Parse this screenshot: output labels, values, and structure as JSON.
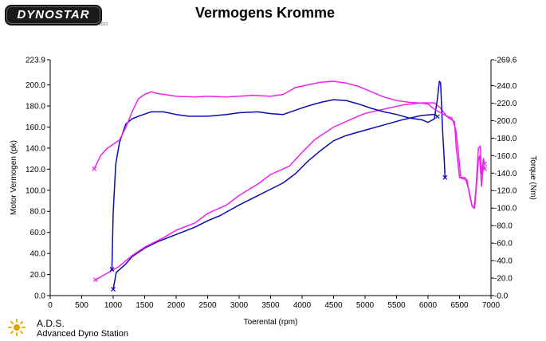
{
  "header": {
    "logo_text": "DYNOSTAR",
    "logo_sub": "2023",
    "title": "Vermogens Kromme"
  },
  "footer": {
    "brand": "A.D.S.",
    "brand_sub": "Advanced Dyno Station"
  },
  "colors": {
    "blue": "#0a0ab4",
    "magenta": "#ee22ee",
    "axis": "#000000"
  },
  "chart_data": {
    "type": "line",
    "title": "Vermogens Kromme",
    "xlabel": "Toerental (rpm)",
    "ylabel": "Motor Vermogen (pk)",
    "y2label": "Torque (Nm)",
    "xlim": [
      0,
      7000
    ],
    "ylim": [
      0,
      223.9
    ],
    "y2lim": [
      0,
      269.6
    ],
    "x_ticks": [
      0,
      500,
      1000,
      1500,
      2000,
      2500,
      3000,
      3500,
      4000,
      4500,
      5000,
      5500,
      6000,
      6500,
      7000
    ],
    "y_ticks": [
      "0.0",
      "20.0",
      "40.0",
      "60.0",
      "80.0",
      "100.0",
      "120.0",
      "140.0",
      "160.0",
      "180.0",
      "200.0",
      "223.9"
    ],
    "y2_ticks": [
      "0.0",
      "20.0",
      "40.0",
      "60.0",
      "80.0",
      "100.0",
      "120.0",
      "140.0",
      "160.0",
      "180.0",
      "200.0",
      "220.0",
      "240.0",
      "269.6"
    ],
    "grid": false,
    "series": [
      {
        "id": "power_blue",
        "color": "#0a0ab4",
        "axis": "left",
        "points": [
          [
            1000,
            6
          ],
          [
            1050,
            22
          ],
          [
            1200,
            30
          ],
          [
            1300,
            37
          ],
          [
            1500,
            45
          ],
          [
            1700,
            51
          ],
          [
            2000,
            58
          ],
          [
            2300,
            65
          ],
          [
            2500,
            71
          ],
          [
            2700,
            76
          ],
          [
            3000,
            86
          ],
          [
            3300,
            95
          ],
          [
            3500,
            101
          ],
          [
            3700,
            107
          ],
          [
            3900,
            116
          ],
          [
            4100,
            128
          ],
          [
            4300,
            138
          ],
          [
            4500,
            147
          ],
          [
            4700,
            152
          ],
          [
            5000,
            157
          ],
          [
            5300,
            162
          ],
          [
            5600,
            167
          ],
          [
            5900,
            171
          ],
          [
            6100,
            172
          ],
          [
            6150,
            170
          ]
        ]
      },
      {
        "id": "power_magenta",
        "color": "#ee22ee",
        "axis": "left",
        "points": [
          [
            720,
            15
          ],
          [
            900,
            21
          ],
          [
            1100,
            28
          ],
          [
            1300,
            38
          ],
          [
            1500,
            46
          ],
          [
            1800,
            55
          ],
          [
            2000,
            62
          ],
          [
            2300,
            69
          ],
          [
            2500,
            78
          ],
          [
            2800,
            86
          ],
          [
            3000,
            95
          ],
          [
            3300,
            106
          ],
          [
            3500,
            115
          ],
          [
            3800,
            123
          ],
          [
            4000,
            136
          ],
          [
            4200,
            148
          ],
          [
            4500,
            160
          ],
          [
            4800,
            168
          ],
          [
            5000,
            173
          ],
          [
            5300,
            177
          ],
          [
            5600,
            181
          ],
          [
            5900,
            183
          ],
          [
            6100,
            183
          ],
          [
            6200,
            178
          ],
          [
            6300,
            170
          ],
          [
            6420,
            165
          ],
          [
            6450,
            140
          ],
          [
            6500,
            112
          ],
          [
            6600,
            110
          ],
          [
            6650,
            100
          ],
          [
            6700,
            85
          ],
          [
            6730,
            83
          ],
          [
            6760,
            100
          ],
          [
            6800,
            140
          ],
          [
            6830,
            142
          ],
          [
            6850,
            115
          ],
          [
            6880,
            130
          ],
          [
            6900,
            125
          ]
        ]
      },
      {
        "id": "torque_blue",
        "color": "#0a0ab4",
        "axis": "right",
        "points": [
          [
            980,
            30
          ],
          [
            1000,
            95
          ],
          [
            1040,
            150
          ],
          [
            1100,
            175
          ],
          [
            1200,
            196
          ],
          [
            1300,
            202
          ],
          [
            1400,
            205
          ],
          [
            1600,
            210
          ],
          [
            1800,
            210
          ],
          [
            2000,
            207
          ],
          [
            2200,
            205
          ],
          [
            2500,
            205
          ],
          [
            2800,
            207
          ],
          [
            3000,
            209
          ],
          [
            3300,
            210
          ],
          [
            3500,
            208
          ],
          [
            3700,
            207
          ],
          [
            3900,
            212
          ],
          [
            4100,
            217
          ],
          [
            4300,
            221
          ],
          [
            4500,
            224
          ],
          [
            4700,
            223
          ],
          [
            4900,
            219
          ],
          [
            5100,
            214
          ],
          [
            5300,
            210
          ],
          [
            5500,
            207
          ],
          [
            5700,
            203
          ],
          [
            5900,
            201
          ],
          [
            6000,
            198
          ],
          [
            6050,
            200
          ],
          [
            6100,
            202
          ],
          [
            6150,
            225
          ],
          [
            6180,
            245
          ],
          [
            6200,
            243
          ],
          [
            6230,
            190
          ],
          [
            6260,
            153
          ],
          [
            6270,
            135
          ]
        ]
      },
      {
        "id": "torque_magenta",
        "color": "#ee22ee",
        "axis": "right",
        "points": [
          [
            700,
            145
          ],
          [
            800,
            160
          ],
          [
            900,
            168
          ],
          [
            1000,
            173
          ],
          [
            1100,
            178
          ],
          [
            1200,
            192
          ],
          [
            1300,
            210
          ],
          [
            1400,
            225
          ],
          [
            1500,
            230
          ],
          [
            1600,
            233
          ],
          [
            1700,
            231
          ],
          [
            2000,
            228
          ],
          [
            2300,
            227
          ],
          [
            2500,
            228
          ],
          [
            2800,
            227
          ],
          [
            3000,
            228
          ],
          [
            3200,
            229
          ],
          [
            3500,
            228
          ],
          [
            3700,
            230
          ],
          [
            3900,
            238
          ],
          [
            4100,
            241
          ],
          [
            4300,
            244
          ],
          [
            4500,
            245
          ],
          [
            4700,
            243
          ],
          [
            4900,
            239
          ],
          [
            5100,
            233
          ],
          [
            5300,
            227
          ],
          [
            5500,
            223
          ],
          [
            5700,
            221
          ],
          [
            5900,
            220
          ],
          [
            6000,
            219
          ],
          [
            6100,
            213
          ],
          [
            6200,
            209
          ],
          [
            6300,
            205
          ],
          [
            6380,
            203
          ],
          [
            6440,
            190
          ],
          [
            6480,
            165
          ],
          [
            6520,
            135
          ],
          [
            6580,
            135
          ],
          [
            6620,
            132
          ],
          [
            6660,
            115
          ],
          [
            6700,
            102
          ],
          [
            6740,
            100
          ],
          [
            6780,
            135
          ],
          [
            6800,
            155
          ],
          [
            6820,
            160
          ],
          [
            6850,
            125
          ],
          [
            6880,
            150
          ],
          [
            6900,
            145
          ]
        ]
      }
    ]
  }
}
